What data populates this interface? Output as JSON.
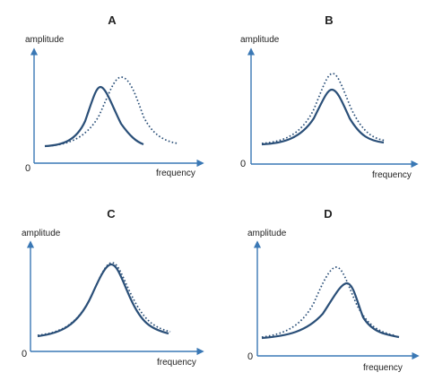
{
  "panels": [
    {
      "title": "A",
      "ylabel": "amplitude",
      "xlabel": "frequency",
      "origin": "0"
    },
    {
      "title": "B",
      "ylabel": "amplitude",
      "xlabel": "frequency",
      "origin": "0"
    },
    {
      "title": "C",
      "ylabel": "amplitude",
      "xlabel": "frequency",
      "origin": "0"
    },
    {
      "title": "D",
      "ylabel": "amplitude",
      "xlabel": "frequency",
      "origin": "0"
    }
  ],
  "colors": {
    "axis": "#3a78b5",
    "curve": "#2a4f78"
  }
}
